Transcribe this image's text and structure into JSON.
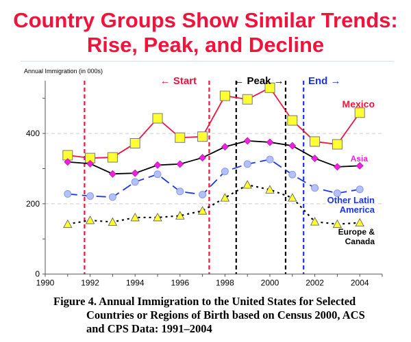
{
  "title": {
    "line1": "Country Groups Show Similar Trends:",
    "line2": "Rise, Peak, and Decline"
  },
  "caption": {
    "line1": "Figure 4.  Annual Immigration to the United States for Selected",
    "line2": "Countries or Regions of Birth based on Census 2000, ACS",
    "line3": "and CPS Data:  1991–2004"
  },
  "chart_data": {
    "type": "line",
    "ylabel": "Annual Immigration (in 000s)",
    "xlim": [
      1990,
      2005
    ],
    "ylim": [
      0,
      550
    ],
    "x_ticks": [
      1990,
      1992,
      1994,
      1996,
      1998,
      2000,
      2002,
      2004
    ],
    "y_ticks": [
      0,
      200,
      400
    ],
    "y_minor_ticks": [
      100,
      300,
      500
    ],
    "grid": "dashed horizontal at 200 and 400",
    "x": [
      1991,
      1992,
      1993,
      1994,
      1995,
      1996,
      1997,
      1998,
      1999,
      2000,
      2001,
      2002,
      2003,
      2004
    ],
    "series": [
      {
        "name": "Mexico",
        "label_color": "#f0143c",
        "line_color": "#f0143c",
        "line_style": "solid",
        "marker": "square",
        "marker_color": "#ffff33",
        "values": [
          338,
          330,
          332,
          372,
          443,
          388,
          391,
          507,
          497,
          530,
          437,
          377,
          369,
          459
        ]
      },
      {
        "name": "Asia",
        "label_color": "#ee22dd",
        "line_color": "#000000",
        "line_style": "solid",
        "marker": "diamond",
        "marker_color": "#ee22dd",
        "values": [
          319,
          314,
          285,
          287,
          310,
          313,
          331,
          362,
          379,
          375,
          365,
          329,
          305,
          308
        ]
      },
      {
        "name": "Other Latin America",
        "label_color": "#1a33ee",
        "line_color": "#1a33ee",
        "line_style": "long-dash",
        "marker": "circle",
        "marker_color": "#b4c0f8",
        "values": [
          228,
          222,
          219,
          262,
          284,
          235,
          226,
          292,
          313,
          326,
          283,
          245,
          230,
          241
        ]
      },
      {
        "name": "Europe & Canada",
        "label_color": "#000000",
        "line_color": "#000000",
        "line_style": "dotted",
        "marker": "triangle",
        "marker_color": "#ffff33",
        "values": [
          142,
          153,
          148,
          161,
          161,
          166,
          180,
          217,
          254,
          240,
          217,
          149,
          142,
          146
        ]
      }
    ],
    "annotations": [
      {
        "text": "← Start",
        "color": "#f0143c",
        "lines": [
          1991.75,
          1997.3
        ]
      },
      {
        "text": "← Peak →",
        "color": "#000000",
        "lines": [
          1998.5,
          2000.7
        ]
      },
      {
        "text": "End →",
        "color": "#1a33ee",
        "lines": [
          2001.5
        ]
      }
    ]
  }
}
